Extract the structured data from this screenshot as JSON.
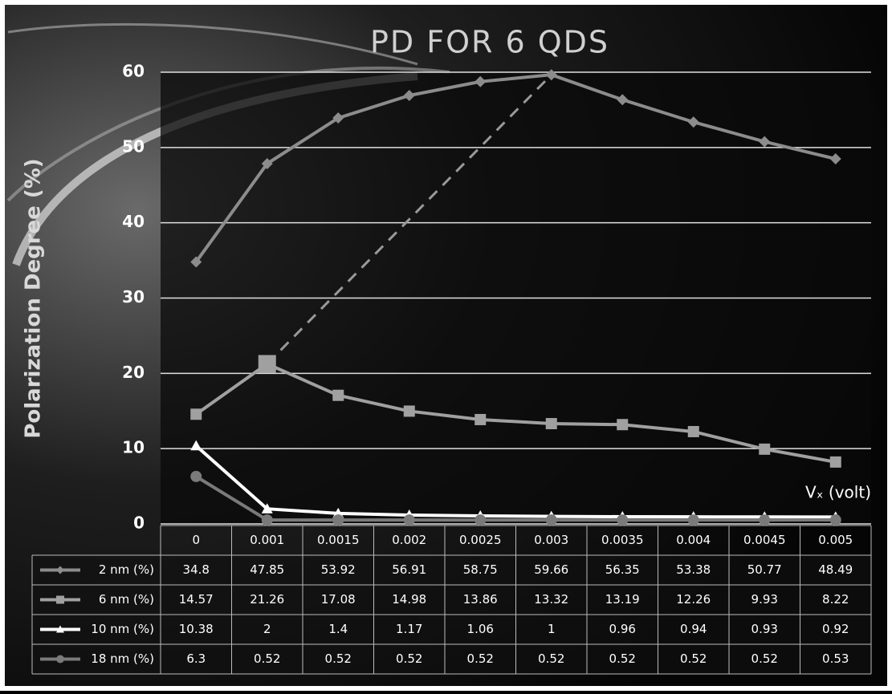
{
  "chart_data": {
    "type": "line",
    "title": "PD FOR 6 QDS",
    "y_label": "Polarization Degree (%)",
    "x_label": "Vₓ (volt)",
    "categories": [
      "0",
      "0.001",
      "0.0015",
      "0.002",
      "0.0025",
      "0.003",
      "0.0035",
      "0.004",
      "0.0045",
      "0.005"
    ],
    "series": [
      {
        "name": "2 nm (%)",
        "color": "#8c8c8c",
        "marker": "diamond",
        "values": [
          34.8,
          47.85,
          53.92,
          56.91,
          58.75,
          59.66,
          56.35,
          53.38,
          50.77,
          48.49
        ]
      },
      {
        "name": "6 nm (%)",
        "color": "#a0a0a0",
        "marker": "square",
        "values": [
          14.57,
          21.26,
          17.08,
          14.98,
          13.86,
          13.32,
          13.19,
          12.26,
          9.93,
          8.22
        ]
      },
      {
        "name": "10 nm (%)",
        "color": "#ffffff",
        "marker": "triangle",
        "values": [
          10.38,
          2,
          1.4,
          1.17,
          1.06,
          1,
          0.96,
          0.94,
          0.93,
          0.92
        ]
      },
      {
        "name": "18 nm (%)",
        "color": "#7a7a7a",
        "marker": "circle",
        "values": [
          6.3,
          0.52,
          0.52,
          0.52,
          0.52,
          0.52,
          0.52,
          0.52,
          0.52,
          0.53
        ]
      }
    ],
    "ylim": [
      0,
      60
    ],
    "yticks": [
      0,
      10,
      20,
      30,
      40,
      50,
      60
    ],
    "grid": true
  }
}
